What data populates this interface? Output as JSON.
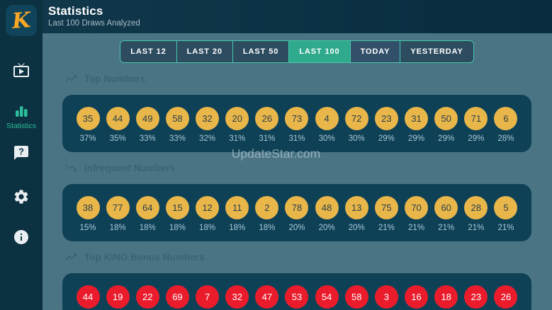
{
  "logo": {
    "letter": "K"
  },
  "header": {
    "title": "Statistics",
    "subtitle": "Last 100 Draws Analyzed"
  },
  "sidebar": {
    "items": [
      {
        "id": "draws",
        "icon": "live-tv-icon",
        "label": ""
      },
      {
        "id": "statistics",
        "icon": "bar-chart-icon",
        "label": "Statistics",
        "active": true
      },
      {
        "id": "help",
        "icon": "help-bubble-icon",
        "label": ""
      },
      {
        "id": "settings",
        "icon": "gear-icon",
        "label": ""
      },
      {
        "id": "info",
        "icon": "info-icon",
        "label": ""
      }
    ]
  },
  "tabs": {
    "items": [
      {
        "label": "LAST 12",
        "state": "default"
      },
      {
        "label": "LAST 20",
        "state": "default"
      },
      {
        "label": "LAST 50",
        "state": "default"
      },
      {
        "label": "LAST 100",
        "state": "selected"
      },
      {
        "label": "TODAY",
        "state": "dark"
      },
      {
        "label": "YESTERDAY",
        "state": "default"
      }
    ]
  },
  "sections": [
    {
      "title": "Top Numbers",
      "icon": "trending-up-icon",
      "ball_color": "#E9B64A",
      "number_color": "#2A3F4C",
      "items": [
        {
          "number": "35",
          "percent": "37%"
        },
        {
          "number": "44",
          "percent": "35%"
        },
        {
          "number": "49",
          "percent": "33%"
        },
        {
          "number": "58",
          "percent": "33%"
        },
        {
          "number": "32",
          "percent": "32%"
        },
        {
          "number": "20",
          "percent": "31%"
        },
        {
          "number": "26",
          "percent": "31%"
        },
        {
          "number": "73",
          "percent": "31%"
        },
        {
          "number": "4",
          "percent": "30%"
        },
        {
          "number": "72",
          "percent": "30%"
        },
        {
          "number": "23",
          "percent": "29%"
        },
        {
          "number": "31",
          "percent": "29%"
        },
        {
          "number": "50",
          "percent": "29%"
        },
        {
          "number": "71",
          "percent": "29%"
        },
        {
          "number": "6",
          "percent": "28%"
        }
      ]
    },
    {
      "title": "Infrequent Numbers",
      "icon": "trending-down-icon",
      "ball_color": "#E9B64A",
      "number_color": "#2A3F4C",
      "items": [
        {
          "number": "38",
          "percent": "15%"
        },
        {
          "number": "77",
          "percent": "18%"
        },
        {
          "number": "64",
          "percent": "18%"
        },
        {
          "number": "15",
          "percent": "18%"
        },
        {
          "number": "12",
          "percent": "18%"
        },
        {
          "number": "11",
          "percent": "18%"
        },
        {
          "number": "2",
          "percent": "18%"
        },
        {
          "number": "78",
          "percent": "20%"
        },
        {
          "number": "48",
          "percent": "20%"
        },
        {
          "number": "13",
          "percent": "20%"
        },
        {
          "number": "75",
          "percent": "21%"
        },
        {
          "number": "70",
          "percent": "21%"
        },
        {
          "number": "60",
          "percent": "21%"
        },
        {
          "number": "28",
          "percent": "21%"
        },
        {
          "number": "5",
          "percent": "21%"
        }
      ]
    },
    {
      "title": "Top KINO Bonus Numbers",
      "icon": "trending-up-icon",
      "ball_color": "#EA1C2C",
      "number_color": "#FFFFFF",
      "items": [
        {
          "number": "44"
        },
        {
          "number": "19"
        },
        {
          "number": "22"
        },
        {
          "number": "69"
        },
        {
          "number": "7"
        },
        {
          "number": "32"
        },
        {
          "number": "47"
        },
        {
          "number": "53"
        },
        {
          "number": "54"
        },
        {
          "number": "58"
        },
        {
          "number": "3"
        },
        {
          "number": "16"
        },
        {
          "number": "18"
        },
        {
          "number": "23"
        },
        {
          "number": "26"
        }
      ]
    }
  ],
  "watermark": "UpdateStar.com"
}
